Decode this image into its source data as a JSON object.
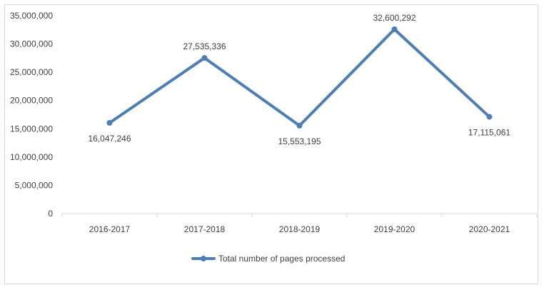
{
  "chart_data": {
    "type": "line",
    "categories": [
      "2016-2017",
      "2017-2018",
      "2018-2019",
      "2019-2020",
      "2020-2021"
    ],
    "series": [
      {
        "name": "Total number of pages processed",
        "values": [
          16047246,
          27535336,
          15553195,
          32600292,
          17115061
        ],
        "data_labels": [
          "16,047,246",
          "27,535,336",
          "15,553,195",
          "32,600,292",
          "17,115,061"
        ],
        "color": "#4a7ebb"
      }
    ],
    "y_ticks": [
      "0",
      "5,000,000",
      "10,000,000",
      "15,000,000",
      "20,000,000",
      "25,000,000",
      "30,000,000",
      "35,000,000"
    ],
    "ylim": [
      0,
      35000000
    ],
    "grid": false,
    "legend_position": "bottom"
  }
}
